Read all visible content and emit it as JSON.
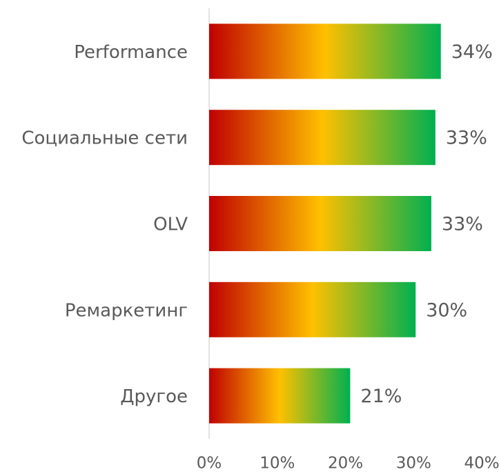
{
  "chart_data": {
    "type": "bar",
    "orientation": "horizontal",
    "categories": [
      "Performance",
      "Социальные сети",
      "OLV",
      "Ремаркетинг",
      "Другое"
    ],
    "values": [
      34,
      33.2,
      32.6,
      30.3,
      20.7
    ],
    "value_labels": [
      "34%",
      "33%",
      "33%",
      "30%",
      "21%"
    ],
    "colors": [
      "#c00000",
      "#ffc000",
      "#00b050"
    ],
    "xlim": [
      0,
      40
    ],
    "xticks": [
      {
        "value": 0,
        "label": "0%"
      },
      {
        "value": 10,
        "label": "10%"
      },
      {
        "value": 20,
        "label": "20%"
      },
      {
        "value": 30,
        "label": "30%"
      },
      {
        "value": 40,
        "label": "40%"
      }
    ],
    "grid": false
  }
}
